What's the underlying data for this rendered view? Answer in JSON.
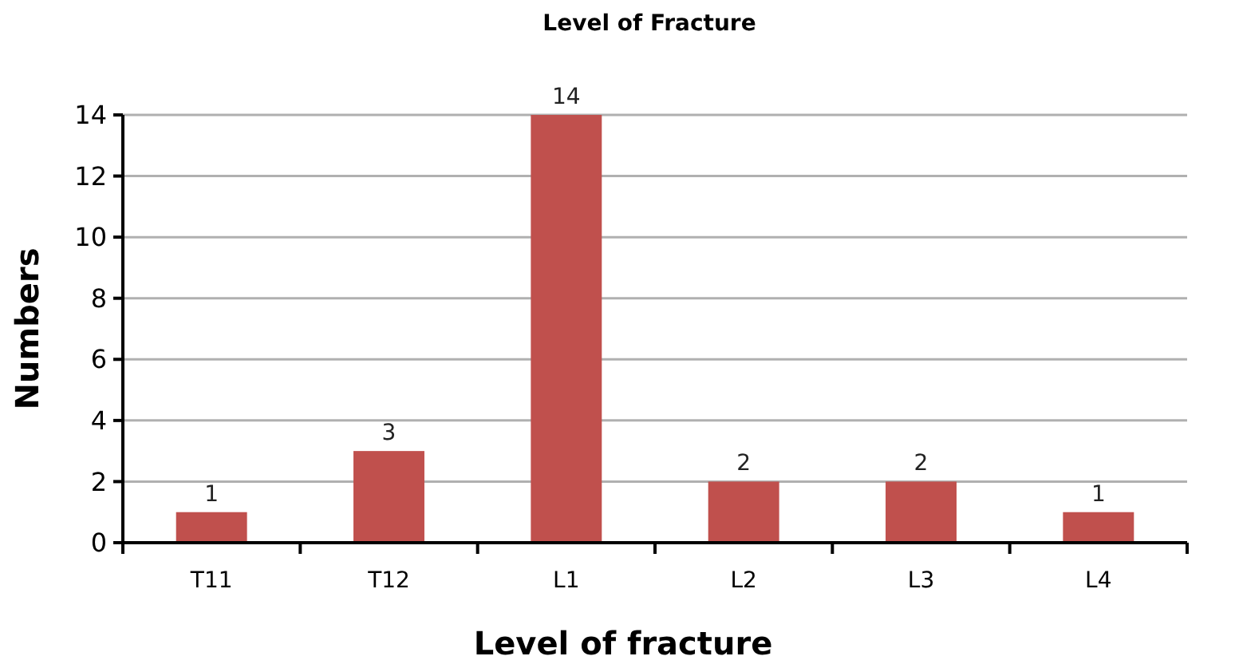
{
  "chart_data": {
    "type": "bar",
    "title": "Level of Fracture",
    "xlabel": "Level of fracture",
    "ylabel": "Numbers",
    "categories": [
      "T11",
      "T12",
      "L1",
      "L2",
      "L3",
      "L4"
    ],
    "values": [
      1,
      3,
      14,
      2,
      2,
      1
    ],
    "color": "#c0504d",
    "ylim": [
      0,
      14
    ],
    "yticks": [
      0,
      2,
      4,
      6,
      8,
      10,
      12,
      14
    ],
    "grid": "y",
    "data_labels": true
  }
}
